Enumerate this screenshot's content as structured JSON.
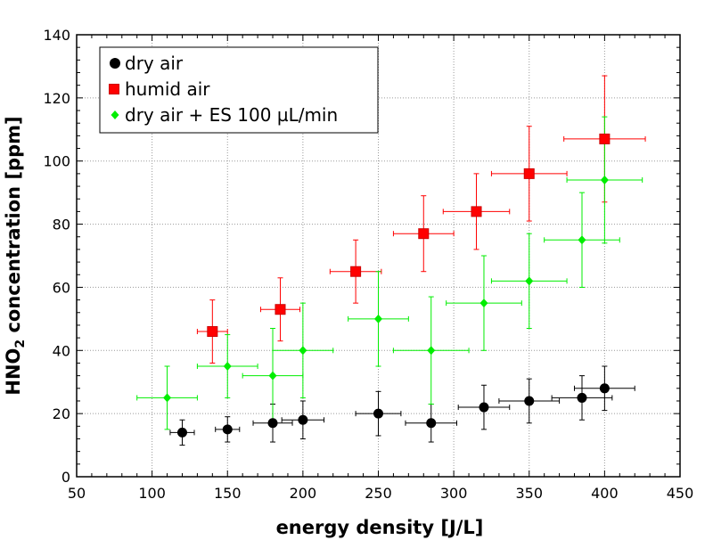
{
  "chart_data": {
    "type": "scatter",
    "title": "",
    "xlabel": "energy density [J/L]",
    "ylabel_main": "HNO",
    "ylabel_sub": "2",
    "ylabel_tail": " concentration [ppm]",
    "xlim": [
      50,
      450
    ],
    "ylim": [
      0,
      140
    ],
    "x_ticks": [
      50,
      100,
      150,
      200,
      250,
      300,
      350,
      400,
      450
    ],
    "y_ticks": [
      0,
      20,
      40,
      60,
      80,
      100,
      120,
      140
    ],
    "x_minor_step": 10,
    "y_minor_step": 4,
    "grid": true,
    "legend_position": "top-left",
    "series": [
      {
        "name": "dry air",
        "marker": "circle",
        "color": "#000000",
        "error_color": "#000000",
        "points": [
          {
            "x": 120,
            "y": 14,
            "xerr": 8,
            "yerr": 4
          },
          {
            "x": 150,
            "y": 15,
            "xerr": 8,
            "yerr": 4
          },
          {
            "x": 180,
            "y": 17,
            "xerr": 13,
            "yerr": 6
          },
          {
            "x": 200,
            "y": 18,
            "xerr": 14,
            "yerr": 6
          },
          {
            "x": 250,
            "y": 20,
            "xerr": 15,
            "yerr": 7
          },
          {
            "x": 285,
            "y": 17,
            "xerr": 17,
            "yerr": 6
          },
          {
            "x": 320,
            "y": 22,
            "xerr": 17,
            "yerr": 7
          },
          {
            "x": 350,
            "y": 24,
            "xerr": 20,
            "yerr": 7
          },
          {
            "x": 385,
            "y": 25,
            "xerr": 20,
            "yerr": 7
          },
          {
            "x": 400,
            "y": 28,
            "xerr": 20,
            "yerr": 7
          }
        ]
      },
      {
        "name": "humid air",
        "marker": "square",
        "color": "#ff0000",
        "error_color": "#ff0000",
        "points": [
          {
            "x": 140,
            "y": 46,
            "xerr": 10,
            "yerr": 10
          },
          {
            "x": 185,
            "y": 53,
            "xerr": 13,
            "yerr": 10
          },
          {
            "x": 235,
            "y": 65,
            "xerr": 17,
            "yerr": 10
          },
          {
            "x": 280,
            "y": 77,
            "xerr": 20,
            "yerr": 12
          },
          {
            "x": 315,
            "y": 84,
            "xerr": 22,
            "yerr": 12
          },
          {
            "x": 350,
            "y": 96,
            "xerr": 25,
            "yerr": 15
          },
          {
            "x": 400,
            "y": 107,
            "xerr": 27,
            "yerr": 20
          }
        ]
      },
      {
        "name": "dry air + ES 100 µL/min",
        "marker": "diamond",
        "color": "#00ee00",
        "error_color": "#00ee00",
        "points": [
          {
            "x": 110,
            "y": 25,
            "xerr": 20,
            "yerr": 10
          },
          {
            "x": 150,
            "y": 35,
            "xerr": 20,
            "yerr": 10
          },
          {
            "x": 180,
            "y": 32,
            "xerr": 20,
            "yerr": 15
          },
          {
            "x": 200,
            "y": 40,
            "xerr": 20,
            "yerr": 15
          },
          {
            "x": 250,
            "y": 50,
            "xerr": 20,
            "yerr": 15
          },
          {
            "x": 285,
            "y": 40,
            "xerr": 25,
            "yerr": 17
          },
          {
            "x": 320,
            "y": 55,
            "xerr": 25,
            "yerr": 15
          },
          {
            "x": 350,
            "y": 62,
            "xerr": 25,
            "yerr": 15
          },
          {
            "x": 385,
            "y": 75,
            "xerr": 25,
            "yerr": 15
          },
          {
            "x": 400,
            "y": 94,
            "xerr": 25,
            "yerr": 20
          }
        ]
      }
    ]
  }
}
